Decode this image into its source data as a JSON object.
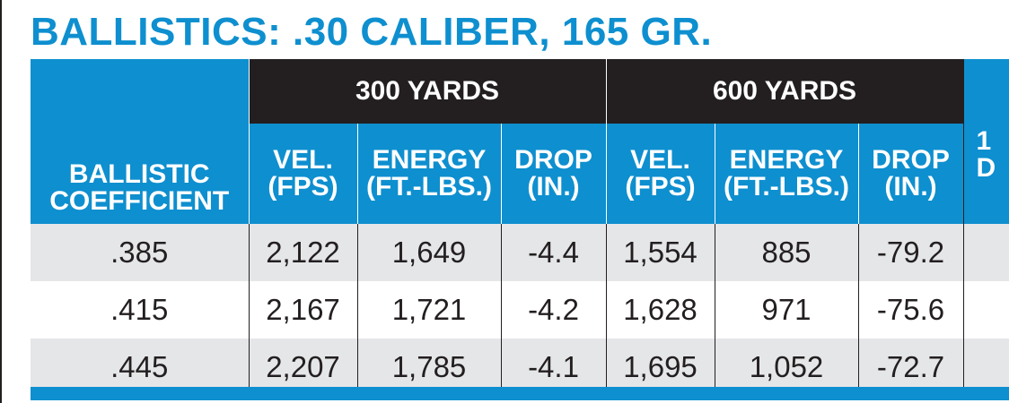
{
  "title": "BALLISTICS: .30 CALIBER, 165 GR.",
  "groups": [
    "300 YARDS",
    "600 YARDS"
  ],
  "columns": {
    "bc": [
      "BALLISTIC",
      "COEFFICIENT"
    ],
    "vel": [
      "VEL.",
      "(FPS)"
    ],
    "energy": [
      "ENERGY",
      "(FT.-LBS.)"
    ],
    "drop": [
      "DROP",
      "(IN.)"
    ],
    "clipped": [
      "1",
      "D"
    ]
  },
  "rows": [
    {
      "bc": ".385",
      "vel300": "2,122",
      "energy300": "1,649",
      "drop300": "-4.4",
      "vel600": "1,554",
      "energy600": "885",
      "drop600": "-79.2"
    },
    {
      "bc": ".415",
      "vel300": "2,167",
      "energy300": "1,721",
      "drop300": "-4.2",
      "vel600": "1,628",
      "energy600": "971",
      "drop600": "-75.6"
    },
    {
      "bc": ".445",
      "vel300": "2,207",
      "energy300": "1,785",
      "drop300": "-4.1",
      "vel600": "1,695",
      "energy600": "1,052",
      "drop600": "-72.7"
    }
  ],
  "colors": {
    "accent": "#0e8fcf",
    "dark": "#231f20",
    "row_shade": "#e5e6e8"
  }
}
